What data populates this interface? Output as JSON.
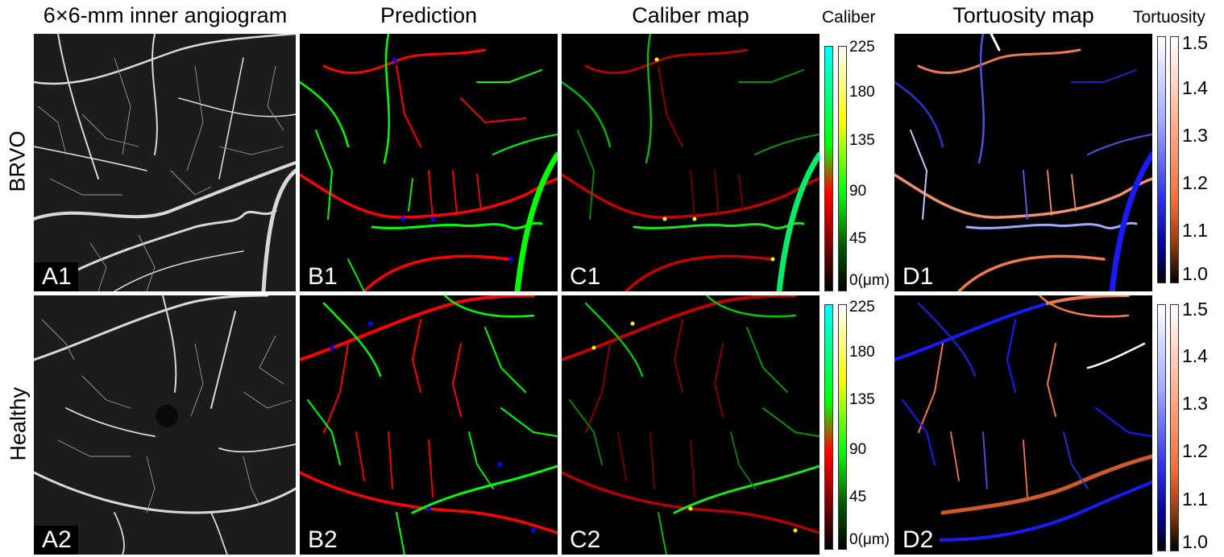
{
  "columns": {
    "angiogram": "6×6-mm inner angiogram",
    "prediction": "Prediction",
    "caliber": "Caliber map",
    "tortuosity": "Tortuosity map"
  },
  "colorbars": {
    "caliber_title": "Caliber",
    "caliber_ticks": [
      "225",
      "180",
      "135",
      "90",
      "45",
      "0(μm)"
    ],
    "tortuosity_title": "Tortuosity",
    "tortuosity_ticks": [
      "1.5",
      "1.4",
      "1.3",
      "1.2",
      "1.1",
      "1.0"
    ]
  },
  "rows": {
    "brvo": "BRVO",
    "healthy": "Healthy"
  },
  "panels": {
    "a1": "A1",
    "b1": "B1",
    "c1": "C1",
    "d1": "D1",
    "a2": "A2",
    "b2": "B2",
    "c2": "C2",
    "d2": "D2"
  },
  "colors": {
    "artery": "#ff0000",
    "vein": "#00ff00",
    "crossing": "#0000ff",
    "dark_red": "#b00000",
    "tort_low": "#1a1aff",
    "tort_mid": "#ff7f50",
    "tort_high": "#ffffff"
  }
}
